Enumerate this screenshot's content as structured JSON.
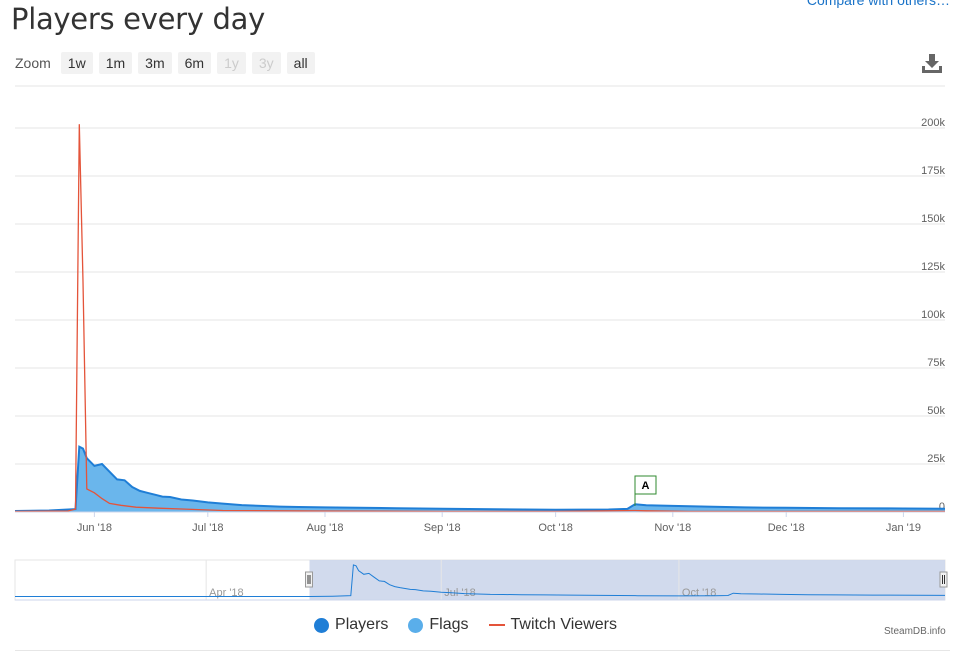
{
  "page": {
    "title": "Players every day",
    "compare_link": "Compare with others…",
    "zoom_label": "Zoom",
    "zoom_buttons": [
      {
        "label": "1w",
        "enabled": true
      },
      {
        "label": "1m",
        "enabled": true
      },
      {
        "label": "3m",
        "enabled": true
      },
      {
        "label": "6m",
        "enabled": true
      },
      {
        "label": "1y",
        "enabled": false
      },
      {
        "label": "3y",
        "enabled": false
      },
      {
        "label": "all",
        "enabled": true
      }
    ],
    "download_icon": "download-icon",
    "credit": "SteamDB.info"
  },
  "colors": {
    "players": "#1f7ed6",
    "flags": "#5aaeea",
    "twitch": "#e4543a",
    "navigator_fill": "#ccd6eb"
  },
  "chart_data": {
    "type": "area",
    "title": "Players every day",
    "y_axis": {
      "range": [
        0,
        200000
      ],
      "ticks": [
        0,
        25000,
        50000,
        75000,
        100000,
        125000,
        150000,
        175000,
        200000
      ],
      "tick_labels": [
        "0",
        "25k",
        "50k",
        "75k",
        "100k",
        "125k",
        "150k",
        "175k",
        "200k"
      ],
      "position": "right",
      "grid": true
    },
    "x_axis": {
      "type": "date",
      "range": [
        "2018-05-11",
        "2019-01-12"
      ],
      "tick_labels": [
        "Jun '18",
        "Jul '18",
        "Aug '18",
        "Sep '18",
        "Oct '18",
        "Nov '18",
        "Dec '18",
        "Jan '19"
      ],
      "tick_dates": [
        "2018-06-01",
        "2018-07-01",
        "2018-08-01",
        "2018-09-01",
        "2018-10-01",
        "2018-11-01",
        "2018-12-01",
        "2019-01-01"
      ]
    },
    "legend": {
      "placement": "bottom-center",
      "entries": [
        "Players",
        "Flags",
        "Twitch Viewers"
      ]
    },
    "series": [
      {
        "name": "Players",
        "x": [
          "2018-05-11",
          "2018-05-20",
          "2018-05-27",
          "2018-05-28",
          "2018-05-29",
          "2018-05-30",
          "2018-06-01",
          "2018-06-03",
          "2018-06-05",
          "2018-06-07",
          "2018-06-09",
          "2018-06-11",
          "2018-06-13",
          "2018-06-15",
          "2018-06-17",
          "2018-06-19",
          "2018-06-21",
          "2018-06-24",
          "2018-06-27",
          "2018-07-01",
          "2018-07-05",
          "2018-07-10",
          "2018-07-15",
          "2018-07-20",
          "2018-07-25",
          "2018-08-01",
          "2018-08-10",
          "2018-08-20",
          "2018-09-01",
          "2018-09-15",
          "2018-10-01",
          "2018-10-15",
          "2018-10-20",
          "2018-10-22",
          "2018-10-25",
          "2018-11-01",
          "2018-11-10",
          "2018-11-20",
          "2018-12-01",
          "2018-12-15",
          "2019-01-01",
          "2019-01-12"
        ],
        "y": [
          500,
          800,
          1500,
          34000,
          33000,
          28000,
          24000,
          25000,
          21000,
          17000,
          16500,
          13000,
          11000,
          10000,
          9000,
          8000,
          7800,
          6500,
          6000,
          5000,
          4400,
          3600,
          3200,
          2800,
          2600,
          2400,
          2200,
          2000,
          1700,
          1400,
          1200,
          1300,
          1600,
          4000,
          3500,
          3200,
          2800,
          2400,
          2200,
          2000,
          1800,
          1700
        ]
      },
      {
        "name": "Twitch Viewers",
        "x": [
          "2018-05-11",
          "2018-05-25",
          "2018-05-27",
          "2018-05-28",
          "2018-05-29",
          "2018-05-30",
          "2018-06-01",
          "2018-06-03",
          "2018-06-05",
          "2018-06-08",
          "2018-06-12",
          "2018-06-18",
          "2018-06-25",
          "2018-07-05",
          "2018-08-01",
          "2018-09-01",
          "2018-10-01",
          "2018-10-22",
          "2018-10-25",
          "2018-11-01",
          "2018-11-05",
          "2018-12-01",
          "2019-01-12"
        ],
        "y": [
          300,
          500,
          1500,
          202000,
          120000,
          12000,
          10000,
          7000,
          4500,
          3500,
          2500,
          2000,
          1500,
          800,
          500,
          300,
          300,
          800,
          600,
          400,
          300,
          300,
          300
        ]
      }
    ],
    "flags": [
      {
        "label": "A",
        "date": "2018-10-22"
      }
    ],
    "navigator": {
      "tick_labels": [
        "Apr '18",
        "Jul '18",
        "Oct '18"
      ]
    }
  }
}
